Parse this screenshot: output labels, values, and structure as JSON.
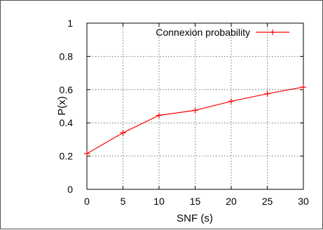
{
  "chart_data": {
    "type": "line",
    "title": "",
    "xlabel": "SNF (s)",
    "ylabel": "P(x)",
    "xlim": [
      0,
      30
    ],
    "ylim": [
      0,
      1
    ],
    "x_ticks": [
      0,
      5,
      10,
      15,
      20,
      25,
      30
    ],
    "y_ticks": [
      0,
      0.2,
      0.4,
      0.6,
      0.8,
      1
    ],
    "x_tick_labels": [
      "0",
      "5",
      "10",
      "15",
      "20",
      "25",
      "30"
    ],
    "y_tick_labels": [
      "0",
      "0.2",
      "0.4",
      "0.6",
      "0.8",
      "1"
    ],
    "grid": true,
    "legend_position": "top-right",
    "series": [
      {
        "name": "Connexion probability",
        "color": "#ff0000",
        "marker": "plus",
        "x": [
          0,
          5,
          10,
          15,
          20,
          25,
          30
        ],
        "y": [
          0.215,
          0.34,
          0.445,
          0.475,
          0.53,
          0.575,
          0.615
        ]
      }
    ]
  }
}
